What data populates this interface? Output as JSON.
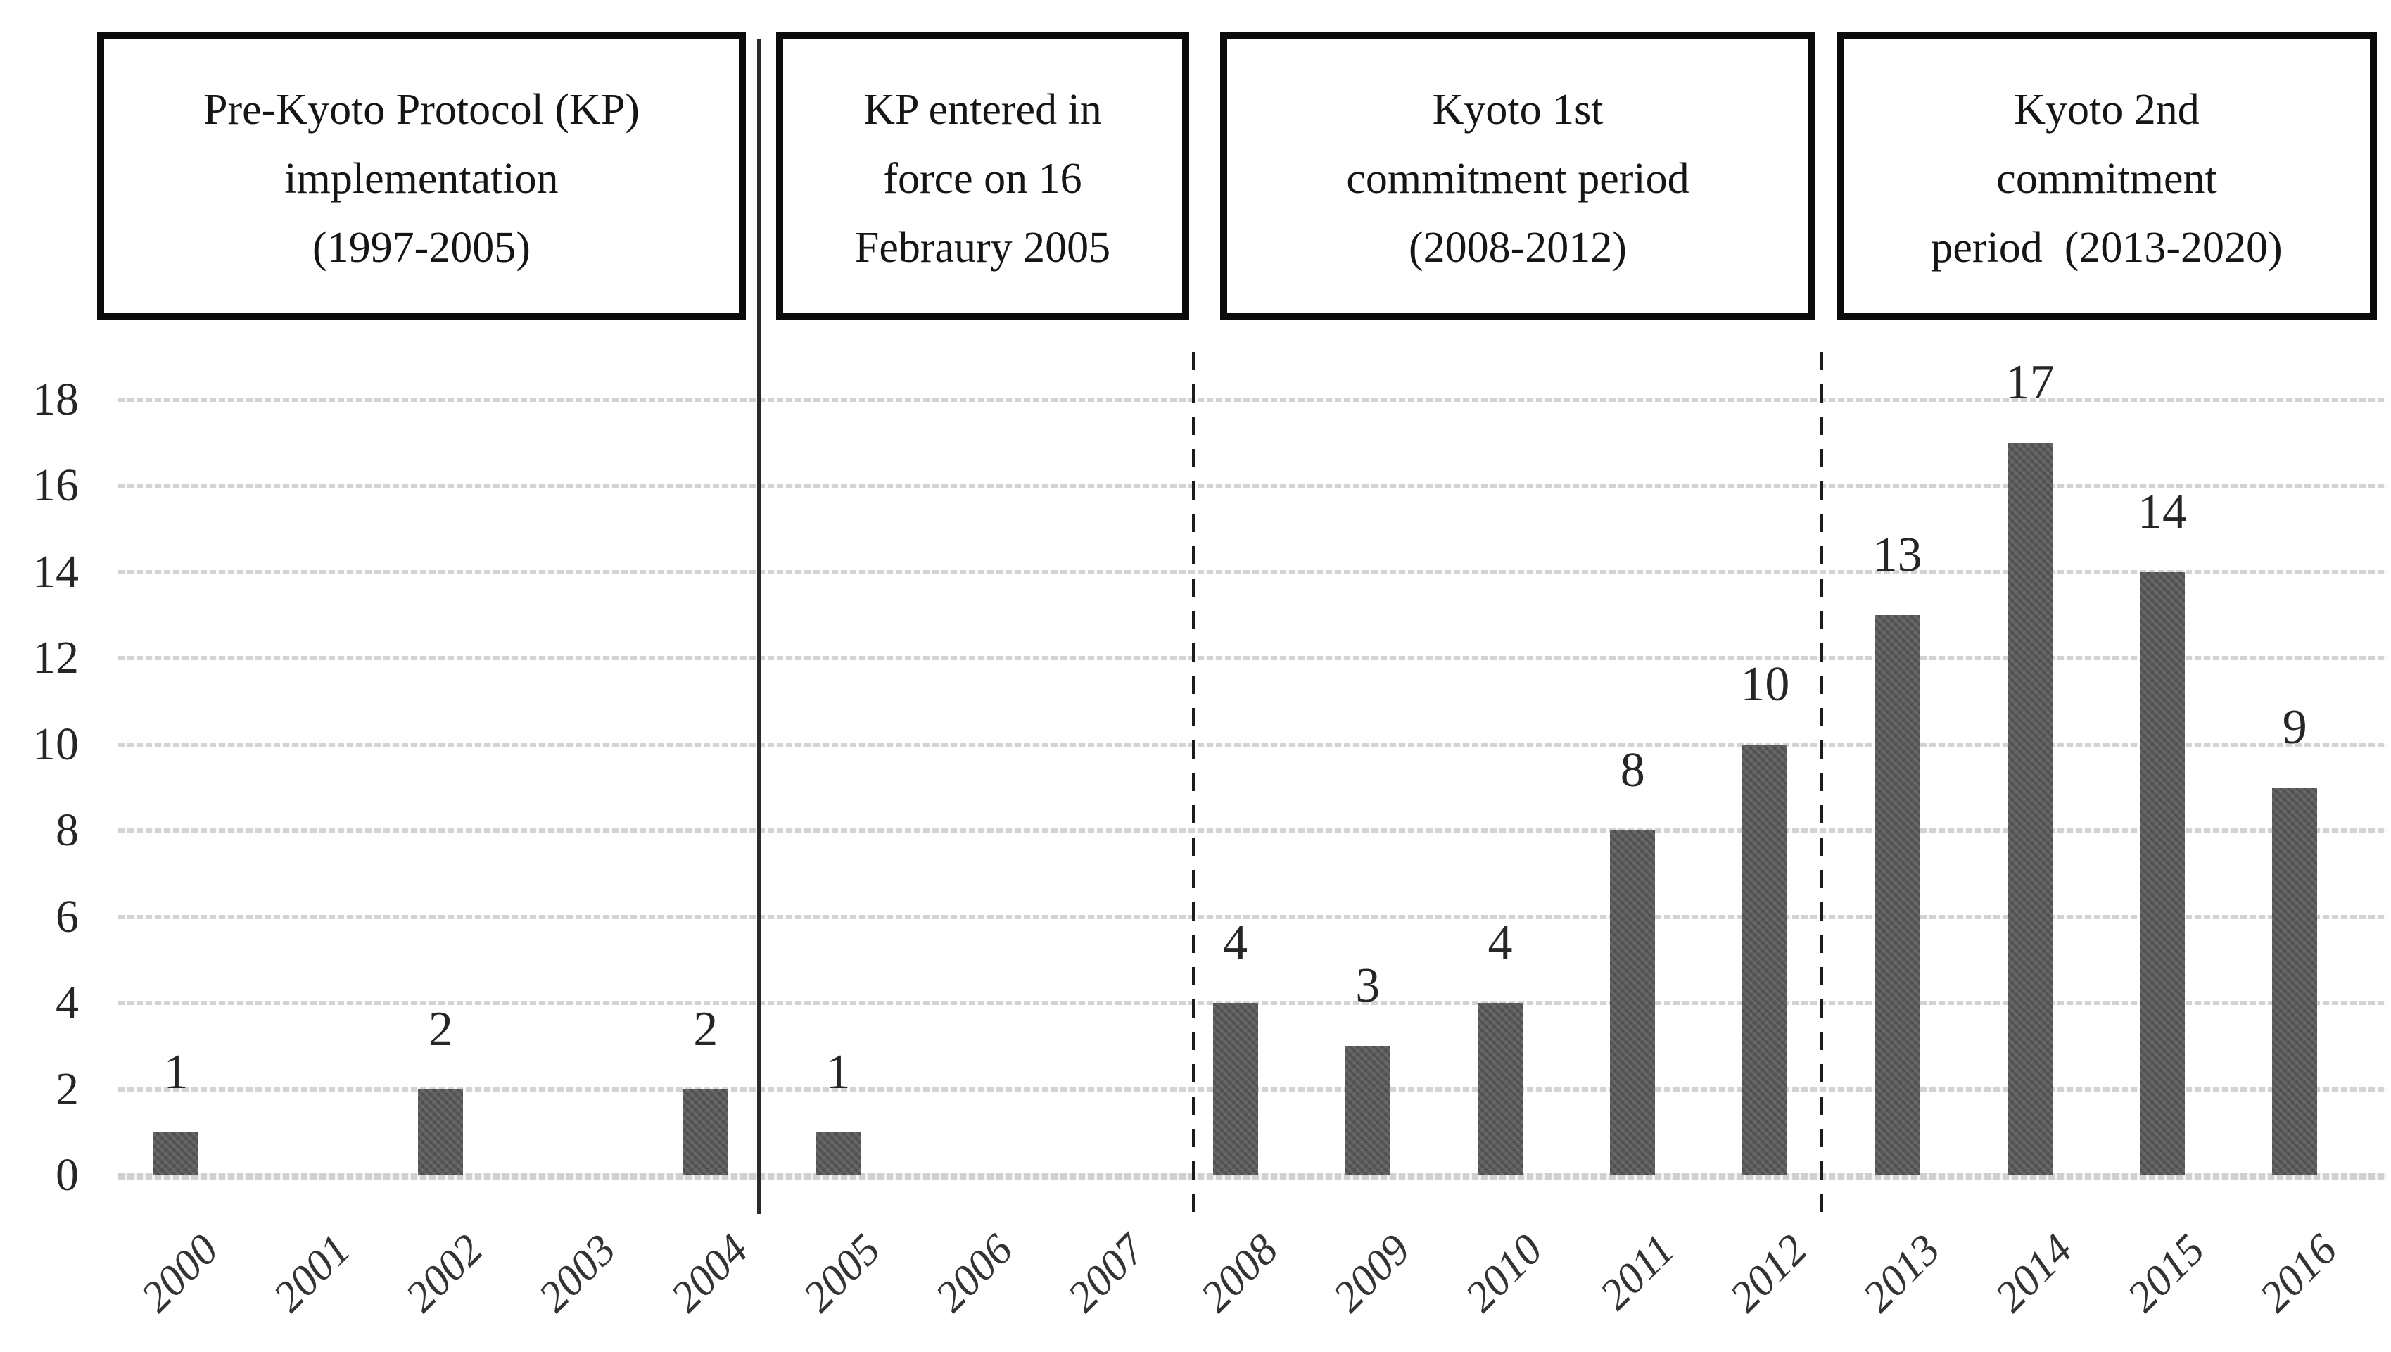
{
  "figure": {
    "periods": [
      {
        "id": "pre-kp",
        "lines": [
          "Pre-Kyoto Protocol (KP)",
          "implementation",
          "(1997-2005)"
        ]
      },
      {
        "id": "kp-entry",
        "lines": [
          "KP entered in",
          "force on 16",
          "Febraury 2005"
        ]
      },
      {
        "id": "kyoto-1st",
        "lines": [
          "Kyoto 1st",
          "commitment period",
          "(2008-2012)"
        ]
      },
      {
        "id": "kyoto-2nd",
        "lines": [
          "Kyoto 2nd",
          "commitment",
          "period  (2013-2020)"
        ]
      }
    ],
    "colors": {
      "bar": "#585858",
      "gridline": "#d3d3d3",
      "divider": "#1c1c1c",
      "text": "#262626"
    }
  },
  "chart_data": {
    "type": "bar",
    "title": "",
    "xlabel": "",
    "ylabel": "",
    "categories": [
      "2000",
      "2001",
      "2002",
      "2003",
      "2004",
      "2005",
      "2006",
      "2007",
      "2008",
      "2009",
      "2010",
      "2011",
      "2012",
      "2013",
      "2014",
      "2015",
      "2016"
    ],
    "values": [
      1,
      0,
      2,
      0,
      2,
      1,
      0,
      0,
      4,
      3,
      4,
      8,
      10,
      13,
      17,
      14,
      9
    ],
    "bar_labels": [
      "1",
      "",
      "2",
      "",
      "2",
      "1",
      "",
      "",
      "4",
      "3",
      "4",
      "8",
      "10",
      "13",
      "17",
      "14",
      "9"
    ],
    "ylim": [
      0,
      18
    ],
    "yticks": [
      0,
      2,
      4,
      6,
      8,
      10,
      12,
      14,
      16,
      18
    ],
    "grid": "horizontal-dotted",
    "legend": "none",
    "annotations": {
      "dividers": [
        {
          "style": "solid",
          "between": [
            "2004",
            "2005"
          ],
          "meaning": "KP entry into force"
        },
        {
          "style": "dashed",
          "between": [
            "2007",
            "2008"
          ],
          "meaning": "start of 1st commitment period"
        },
        {
          "style": "dashed",
          "between": [
            "2012",
            "2013"
          ],
          "meaning": "start of 2nd commitment period"
        }
      ]
    }
  }
}
